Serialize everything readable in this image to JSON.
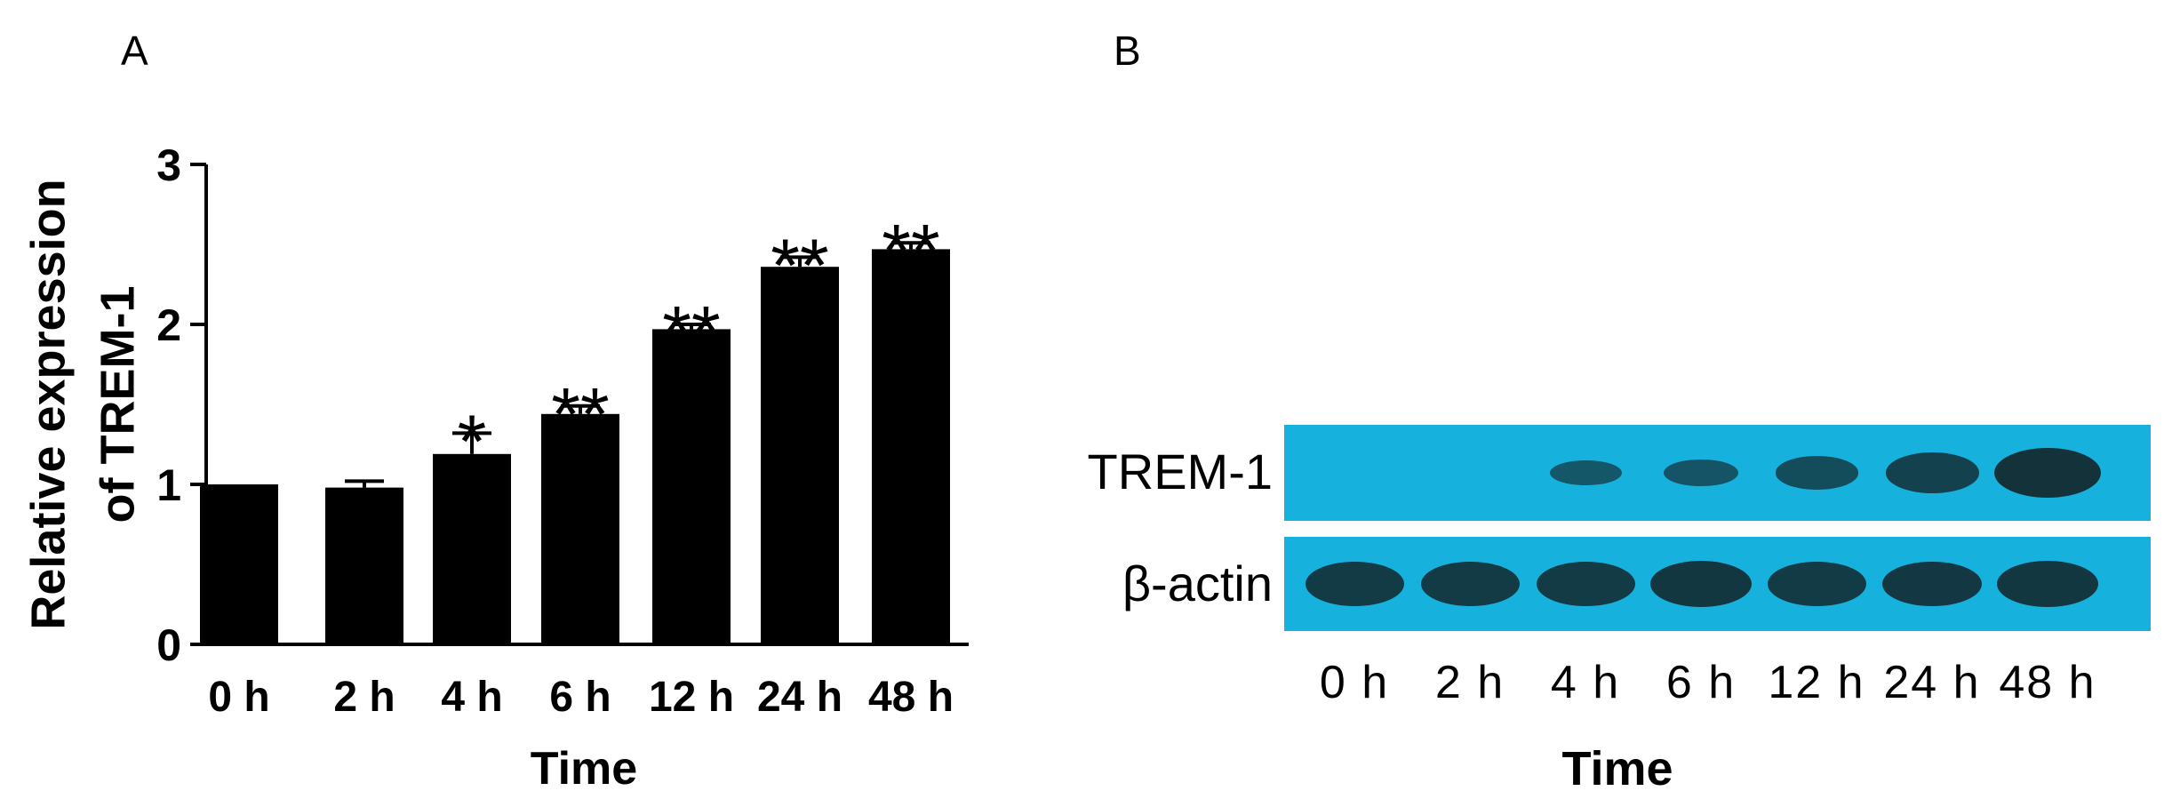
{
  "panels": {
    "a_letter": "A",
    "b_letter": "B"
  },
  "chart_data": {
    "type": "bar",
    "categories": [
      "0 h",
      "2 h",
      "4 h",
      "6 h",
      "12 h",
      "24 h",
      "48 h"
    ],
    "values": [
      1.0,
      0.98,
      1.19,
      1.44,
      1.97,
      2.36,
      2.47
    ],
    "errors": [
      0.0,
      0.04,
      0.13,
      0.05,
      0.03,
      0.06,
      0.04
    ],
    "significance": [
      "",
      "",
      "*",
      "**",
      "**",
      "**",
      "**"
    ],
    "xlabel": "Time",
    "ylabel_lines": [
      "Relative expression",
      "of TREM-1"
    ],
    "ylim": [
      0,
      3
    ],
    "yticks": [
      "0",
      "1",
      "2",
      "3"
    ],
    "bar_color": "#000000"
  },
  "western_blot": {
    "rows": [
      {
        "label": "TREM-1",
        "intensities": [
          0.0,
          0.0,
          0.35,
          0.4,
          0.55,
          0.75,
          1.0
        ]
      },
      {
        "label": "β-actin",
        "intensities": [
          0.85,
          0.85,
          0.85,
          0.9,
          0.85,
          0.88,
          0.9
        ]
      }
    ],
    "lanes": [
      "0 h",
      "2 h",
      "4 h",
      "6 h",
      "12 h",
      "24 h",
      "48 h"
    ],
    "xlabel": "Time",
    "background_color": "#16b2dd",
    "band_color": "#13323a"
  }
}
